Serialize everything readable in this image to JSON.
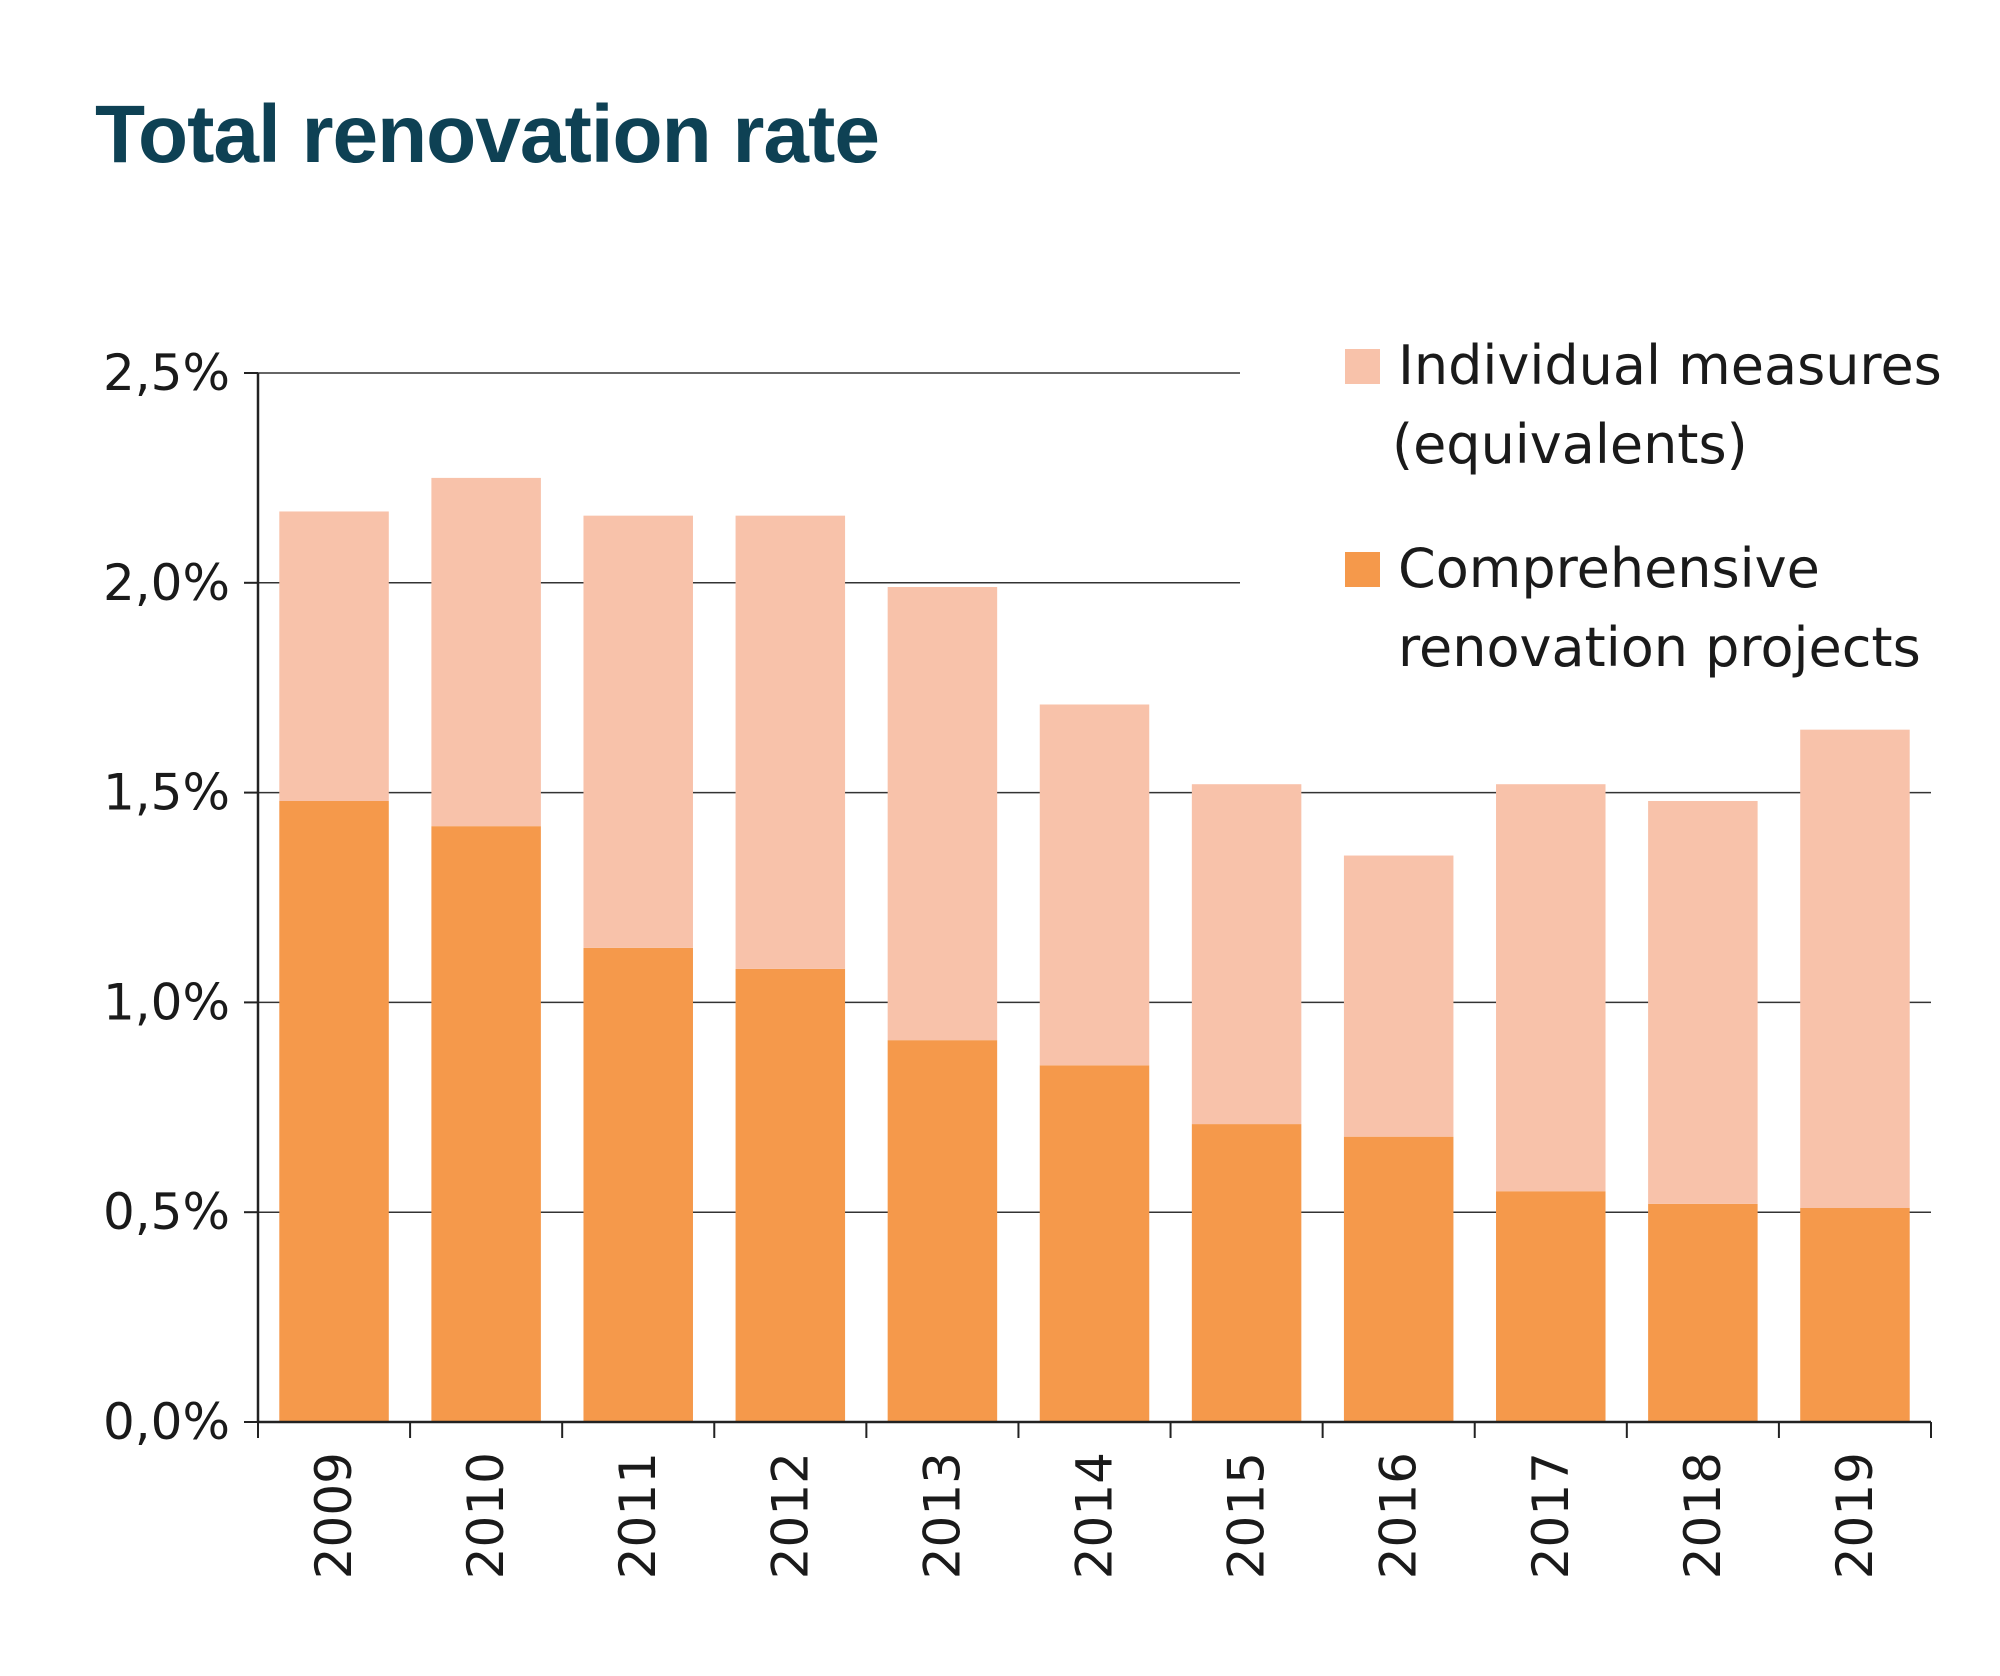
{
  "chart_data": {
    "type": "bar",
    "stacked": true,
    "title": "Total renovation rate",
    "categories": [
      "2009",
      "2010",
      "2011",
      "2012",
      "2013",
      "2014",
      "2015",
      "2016",
      "2017",
      "2018",
      "2019"
    ],
    "series": [
      {
        "name": "Comprehensive renovation projects",
        "color": "#f5994b",
        "values": [
          1.48,
          1.42,
          1.13,
          1.08,
          0.91,
          0.85,
          0.71,
          0.68,
          0.55,
          0.52,
          0.51
        ]
      },
      {
        "name": "Individual measures (equivalents)",
        "color": "#f8c2aa",
        "values": [
          0.69,
          0.83,
          1.03,
          1.08,
          1.08,
          0.86,
          0.81,
          0.67,
          0.97,
          0.96,
          1.14
        ]
      }
    ],
    "ylim": [
      0,
      2.5
    ],
    "yticks": [
      "0,0%",
      "0,5%",
      "1,0%",
      "1,5%",
      "2,0%",
      "2,5%"
    ],
    "grid": true,
    "legend_position": "top-right",
    "legend": [
      {
        "lines": [
          "Individual measures",
          "(equivalents)"
        ],
        "color": "#f8c2aa"
      },
      {
        "lines": [
          "Comprehensive",
          "renovation projects"
        ],
        "color": "#f5994b"
      }
    ]
  }
}
